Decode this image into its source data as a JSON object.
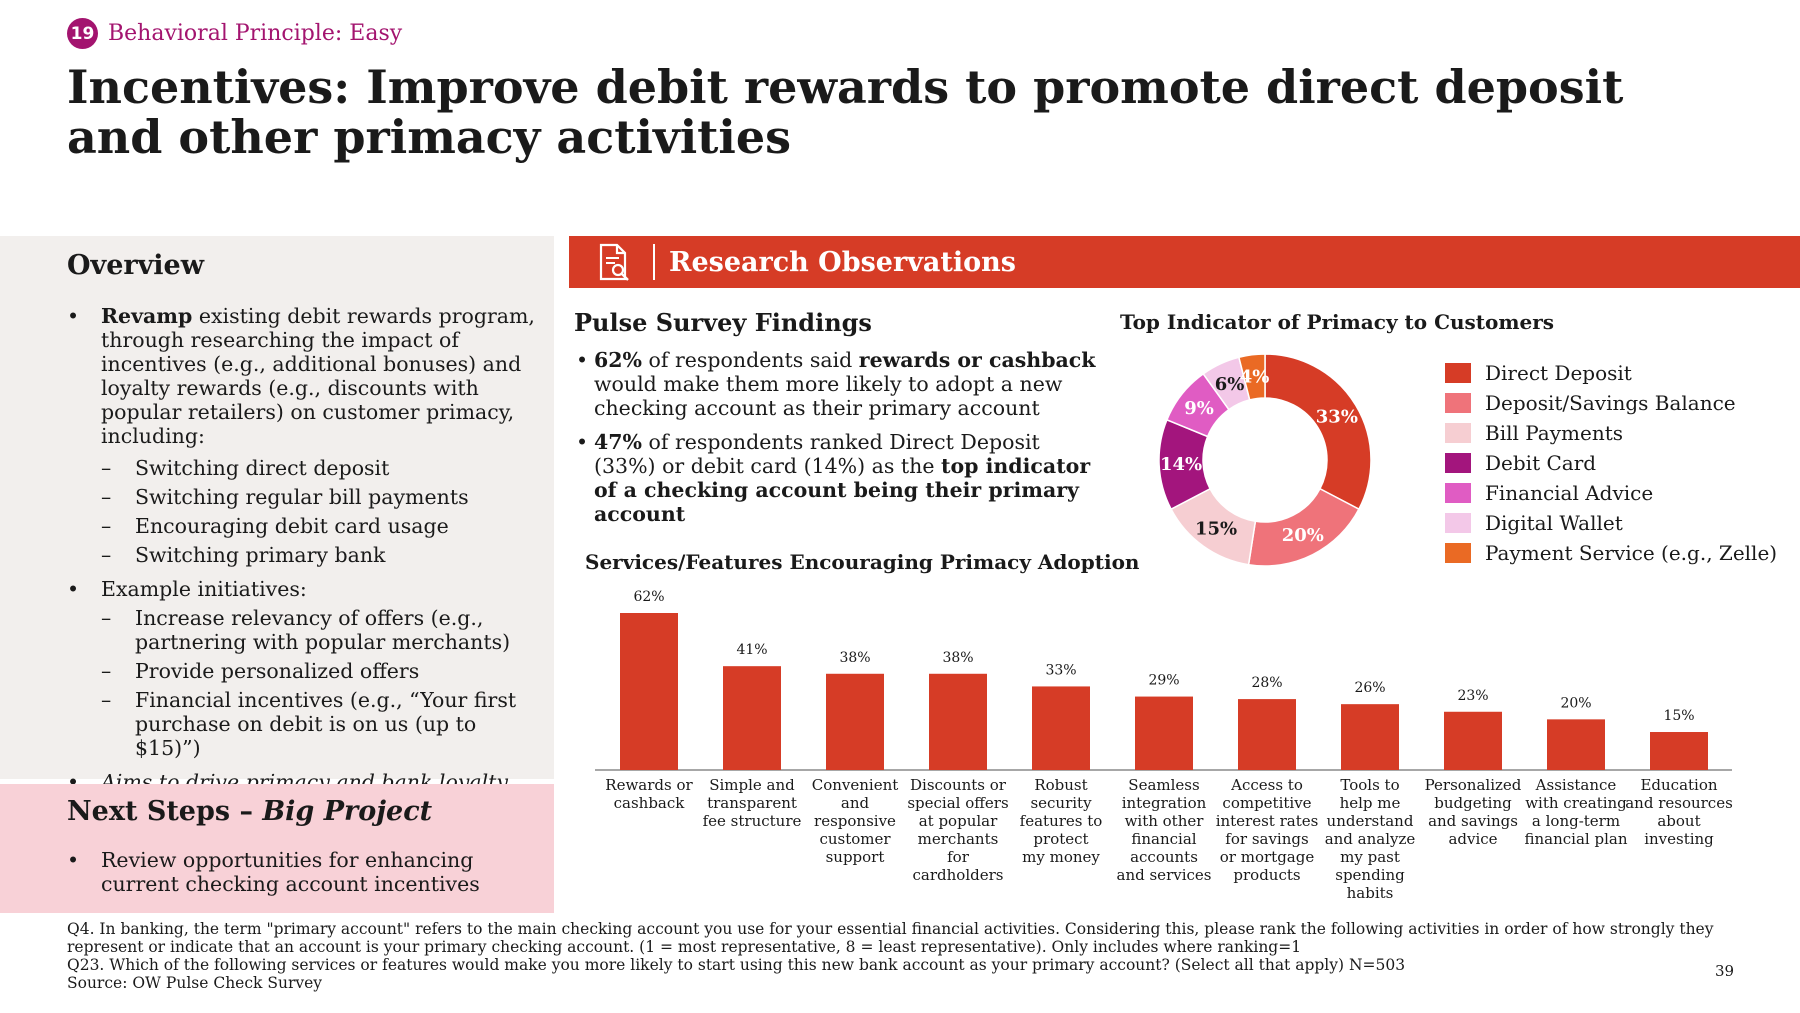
{
  "header": {
    "number": "19",
    "principle": "Behavioral Principle: Easy",
    "title": "Incentives: Improve debit rewards to promote direct deposit and other primacy activities"
  },
  "overview": {
    "heading": "Overview",
    "b1_bold": "Revamp",
    "b1_text": " existing debit rewards program, through researching the impact of incentives (e.g., additional bonuses) and loyalty rewards (e.g., discounts with popular retailers) on customer primacy, including:",
    "b1_subs": [
      "Switching direct deposit",
      "Switching regular bill payments",
      "Encouraging debit card usage",
      "Switching primary bank"
    ],
    "b2_text": "Example initiatives:",
    "b2_subs": [
      "Increase relevancy of offers (e.g., partnering with popular merchants)",
      "Provide personalized offers",
      "Financial incentives (e.g., “Your first purchase on debit is on us (up to $15)”)"
    ],
    "b3_text": "Aims to drive primacy and bank loyalty"
  },
  "next_steps": {
    "heading_plain": "Next Steps – ",
    "heading_italic": "Big Project",
    "bullet": "Review opportunities for enhancing current checking account incentives"
  },
  "research": {
    "bar_title": "Research Observations",
    "icon": "document-search-icon",
    "pulse_heading": "Pulse Survey Findings",
    "p1_b1": "62%",
    "p1_t1": " of respondents said ",
    "p1_b2": "rewards or cashback",
    "p1_t2": " would make them more likely to adopt a new checking account as their primary account",
    "p2_b1": "47%",
    "p2_t1": " of respondents ranked Direct Deposit (33%) or debit card (14%) as the ",
    "p2_b2": "top indicator of a checking account being their primary account"
  },
  "chart_data": [
    {
      "type": "pie",
      "title": "Top Indicator of Primacy to Customers",
      "categories": [
        "Direct Deposit",
        "Deposit/Savings Balance",
        "Bill Payments",
        "Debit Card",
        "Financial Advice",
        "Digital Wallet",
        "Payment Service (e.g., Zelle)"
      ],
      "values": [
        33,
        20,
        15,
        14,
        9,
        6,
        4
      ],
      "labels": [
        "33%",
        "20%",
        "15%",
        "14%",
        "9%",
        "6%",
        "4%"
      ],
      "colors": [
        "#d63c26",
        "#ef737a",
        "#f6ced2",
        "#a3157d",
        "#e05cc3",
        "#f3c8e8",
        "#ea6a24"
      ],
      "donut": true,
      "legend": "right"
    },
    {
      "type": "bar",
      "title": "Services/Features Encouraging Primacy Adoption",
      "categories": [
        "Rewards or cashback",
        "Simple and transparent fee structure",
        "Convenient and responsive customer support",
        "Discounts or special offers at popular merchants for cardholders",
        "Robust security features to protect my money",
        "Seamless integration with other financial accounts and services",
        "Access to competitive interest rates for savings or mortgage products",
        "Tools to help me understand and analyze my past spending habits",
        "Personalized budgeting and savings advice",
        "Assistance with creating a long-term financial plan",
        "Education and resources about investing"
      ],
      "category_lines": [
        [
          "Rewards or",
          "cashback"
        ],
        [
          "Simple and",
          "transparent",
          "fee structure"
        ],
        [
          "Convenient",
          "and",
          "responsive",
          "customer",
          "support"
        ],
        [
          "Discounts or",
          "special offers",
          "at popular",
          "merchants",
          "for",
          "cardholders"
        ],
        [
          "Robust",
          "security",
          "features to",
          "protect",
          "my money"
        ],
        [
          "Seamless",
          "integration",
          "with other",
          "financial",
          "accounts",
          "and services"
        ],
        [
          "Access to",
          "competitive",
          "interest rates",
          "for savings",
          "or mortgage",
          "products"
        ],
        [
          "Tools to",
          "help me",
          "understand",
          "and analyze",
          "my past",
          "spending",
          "habits"
        ],
        [
          "Personalized",
          "budgeting",
          "and savings",
          "advice"
        ],
        [
          "Assistance",
          "with creating",
          "a long-term",
          "financial plan"
        ],
        [
          "Education",
          "and resources",
          "about",
          "investing"
        ]
      ],
      "values": [
        62,
        41,
        38,
        38,
        33,
        29,
        28,
        26,
        23,
        20,
        15
      ],
      "labels": [
        "62%",
        "41%",
        "38%",
        "38%",
        "33%",
        "29%",
        "28%",
        "26%",
        "23%",
        "20%",
        "15%"
      ],
      "color": "#d63c26",
      "ylim": [
        0,
        62
      ],
      "grid": false
    }
  ],
  "footnote": {
    "line1": "Q4. In banking, the term \"primary account\" refers to the main checking account you use for your essential financial activities. Considering this, please rank the following activities in order of how strongly they represent or indicate that an account is your primary checking account. (1 = most representative, 8 = least representative). Only includes where ranking=1",
    "line2": "Q23. Which of the following services or features would make you more likely to start using this new bank account as your primary account? (Select all that apply) N=503",
    "line3": "Source: OW Pulse Check Survey"
  },
  "page_number": "39"
}
